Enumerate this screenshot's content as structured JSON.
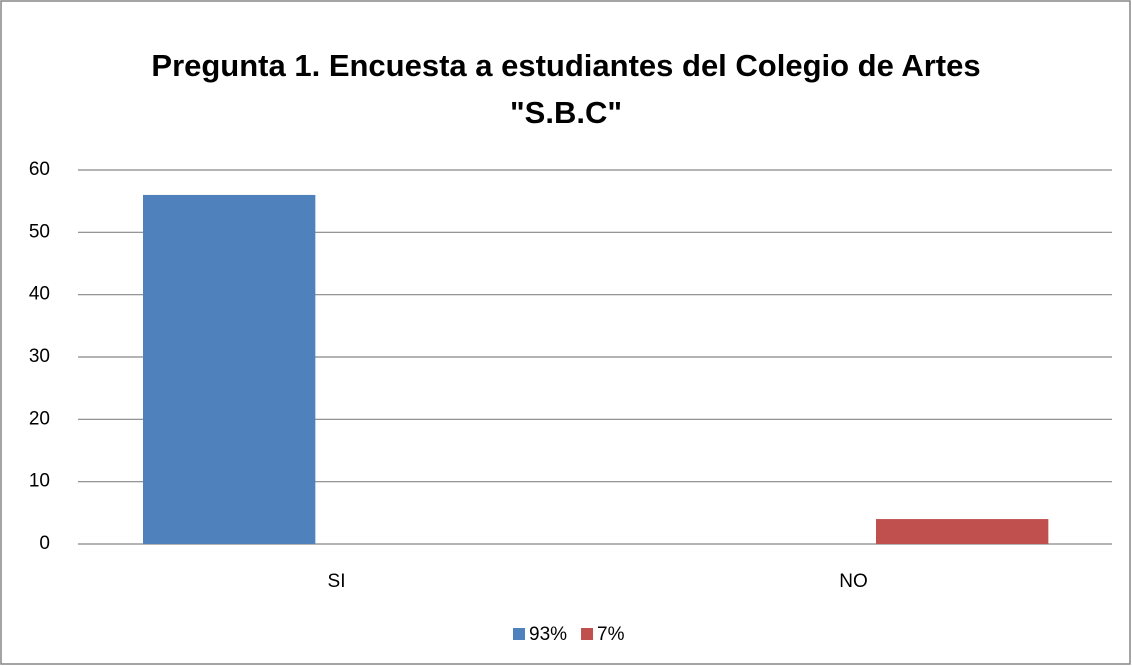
{
  "chart_data": {
    "type": "bar",
    "title": "Pregunta 1. Encuesta a estudiantes del Colegio de Artes \"S.B.C\"",
    "categories": [
      "SI",
      "NO"
    ],
    "series": [
      {
        "name": "93%",
        "color": "#4f81bd",
        "values": [
          56,
          null
        ]
      },
      {
        "name": "7%",
        "color": "#c0504d",
        "values": [
          null,
          4
        ]
      }
    ],
    "ylim": [
      0,
      60
    ],
    "yticks": [
      0,
      10,
      20,
      30,
      40,
      50,
      60
    ],
    "grid": true,
    "legend": "bottom"
  }
}
